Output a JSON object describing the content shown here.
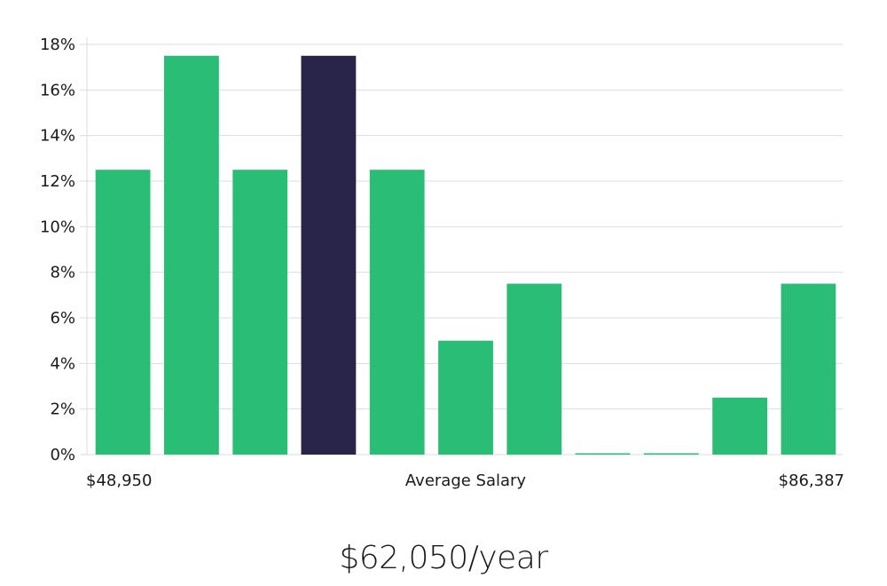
{
  "colors": {
    "bar": "#2abd76",
    "highlight": "#29254a",
    "grid": "#dddddd",
    "text": "#1a1a1a"
  },
  "chart_data": {
    "type": "bar",
    "title": "",
    "xlabel": "Average Salary",
    "ylabel": "",
    "x_min_label": "$48,950",
    "x_max_label": "$86,387",
    "ylim": [
      0,
      18
    ],
    "yticks": [
      0,
      2,
      4,
      6,
      8,
      10,
      12,
      14,
      16,
      18
    ],
    "ytick_labels": [
      "0%",
      "2%",
      "4%",
      "6%",
      "8%",
      "10%",
      "12%",
      "14%",
      "16%",
      "18%"
    ],
    "values": [
      12.5,
      17.5,
      12.5,
      17.5,
      12.5,
      5,
      7.5,
      0,
      0,
      2.5,
      7.5
    ],
    "highlight_index": 3,
    "grid": true
  },
  "summary": {
    "salary": "$62,050/year"
  }
}
